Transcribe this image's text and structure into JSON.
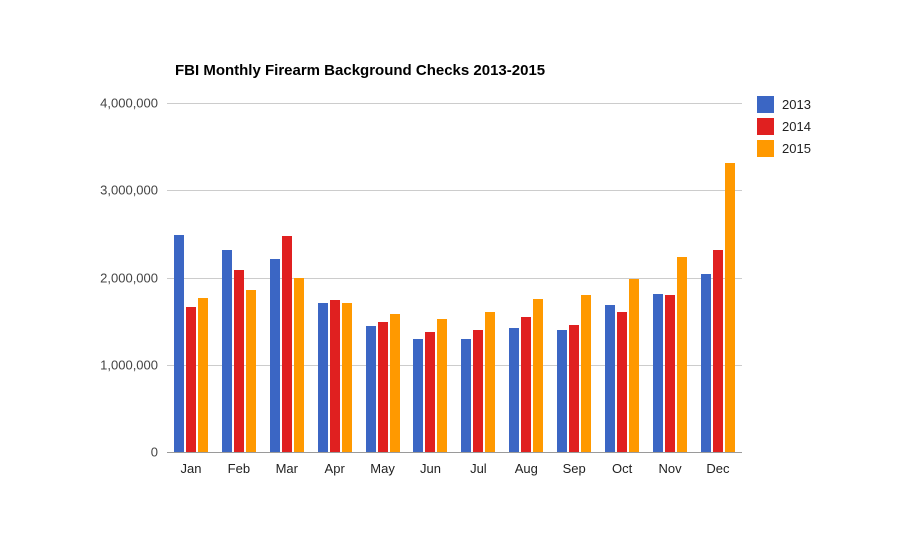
{
  "chart_data": {
    "type": "bar",
    "title": "FBI Monthly Firearm Background Checks 2013-2015",
    "categories": [
      "Jan",
      "Feb",
      "Mar",
      "Apr",
      "May",
      "Jun",
      "Jul",
      "Aug",
      "Sep",
      "Oct",
      "Nov",
      "Dec"
    ],
    "series": [
      {
        "name": "2013",
        "color": "#3b66c4",
        "values": [
          2490000,
          2310000,
          2210000,
          1710000,
          1440000,
          1290000,
          1290000,
          1420000,
          1400000,
          1690000,
          1810000,
          2040000
        ]
      },
      {
        "name": "2014",
        "color": "#e02020",
        "values": [
          1660000,
          2090000,
          2480000,
          1740000,
          1490000,
          1380000,
          1400000,
          1550000,
          1460000,
          1600000,
          1800000,
          2310000
        ]
      },
      {
        "name": "2015",
        "color": "#ff9900",
        "values": [
          1770000,
          1860000,
          2000000,
          1710000,
          1580000,
          1530000,
          1600000,
          1750000,
          1800000,
          1980000,
          2240000,
          3310000
        ]
      }
    ],
    "xlabel": "",
    "ylabel": "",
    "ylim": [
      0,
      4000000
    ],
    "yticks": [
      {
        "value": 0,
        "label": "0"
      },
      {
        "value": 1000000,
        "label": "1,000,000"
      },
      {
        "value": 2000000,
        "label": "2,000,000"
      },
      {
        "value": 3000000,
        "label": "3,000,000"
      },
      {
        "value": 4000000,
        "label": "4,000,000"
      }
    ],
    "grid": true,
    "legend_position": "top-right",
    "background_color": "#ffffff",
    "gridline_color": "#cccccc"
  }
}
